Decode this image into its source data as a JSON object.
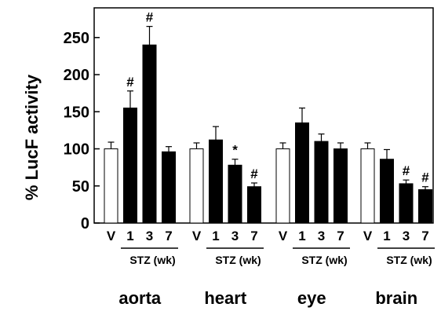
{
  "chart_data": {
    "type": "bar",
    "ylabel": "% LucF activity",
    "ylim": [
      0,
      290
    ],
    "yticks": [
      0,
      50,
      100,
      150,
      200,
      250
    ],
    "stz_label": "STZ (wk)",
    "legend": "none",
    "grid": false,
    "groups": [
      {
        "name": "aorta",
        "bars": [
          {
            "label": "V",
            "value": 100,
            "error": 9,
            "fill": "white",
            "sig": ""
          },
          {
            "label": "1",
            "value": 155,
            "error": 23,
            "fill": "black",
            "sig": "#"
          },
          {
            "label": "3",
            "value": 240,
            "error": 25,
            "fill": "black",
            "sig": "#"
          },
          {
            "label": "7",
            "value": 96,
            "error": 7,
            "fill": "black",
            "sig": ""
          }
        ]
      },
      {
        "name": "heart",
        "bars": [
          {
            "label": "V",
            "value": 100,
            "error": 8,
            "fill": "white",
            "sig": ""
          },
          {
            "label": "1",
            "value": 112,
            "error": 18,
            "fill": "black",
            "sig": ""
          },
          {
            "label": "3",
            "value": 78,
            "error": 8,
            "fill": "black",
            "sig": "*"
          },
          {
            "label": "7",
            "value": 49,
            "error": 5,
            "fill": "black",
            "sig": "#"
          }
        ]
      },
      {
        "name": "eye",
        "bars": [
          {
            "label": "V",
            "value": 100,
            "error": 8,
            "fill": "white",
            "sig": ""
          },
          {
            "label": "1",
            "value": 135,
            "error": 20,
            "fill": "black",
            "sig": ""
          },
          {
            "label": "3",
            "value": 110,
            "error": 10,
            "fill": "black",
            "sig": ""
          },
          {
            "label": "7",
            "value": 100,
            "error": 8,
            "fill": "black",
            "sig": ""
          }
        ]
      },
      {
        "name": "brain",
        "bars": [
          {
            "label": "V",
            "value": 100,
            "error": 8,
            "fill": "white",
            "sig": ""
          },
          {
            "label": "1",
            "value": 86,
            "error": 13,
            "fill": "black",
            "sig": ""
          },
          {
            "label": "3",
            "value": 53,
            "error": 5,
            "fill": "black",
            "sig": "#"
          },
          {
            "label": "7",
            "value": 45,
            "error": 4,
            "fill": "black",
            "sig": "#"
          }
        ]
      }
    ]
  },
  "colors": {
    "bar_filled": "#000000",
    "bar_open": "#ffffff",
    "stroke": "#000000"
  }
}
